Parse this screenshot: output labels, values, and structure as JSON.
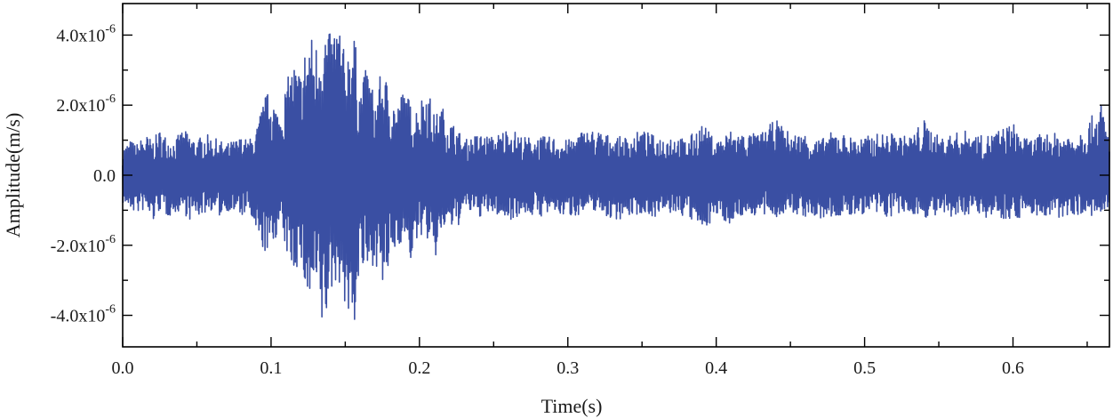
{
  "chart_data": {
    "type": "line",
    "title": "",
    "xlabel": "Time(s)",
    "ylabel": "Amplitude(m/s)",
    "xlim": [
      0.0,
      0.665
    ],
    "ylim": [
      -4.9e-06,
      4.9e-06
    ],
    "x_ticks": [
      0.0,
      0.1,
      0.2,
      0.3,
      0.4,
      0.5,
      0.6
    ],
    "x_tick_labels": [
      "0.0",
      "0.1",
      "0.2",
      "0.3",
      "0.4",
      "0.5",
      "0.6"
    ],
    "y_ticks": [
      -4e-06,
      -2e-06,
      0.0,
      2e-06,
      4e-06
    ],
    "y_tick_labels": [
      {
        "mantissa": "-4.0x10",
        "exp": "-6"
      },
      {
        "mantissa": "-2.0x10",
        "exp": "-6"
      },
      {
        "mantissa": "0.0",
        "exp": ""
      },
      {
        "mantissa": "2.0x10",
        "exp": "-6"
      },
      {
        "mantissa": "4.0x10",
        "exp": "-6"
      }
    ],
    "grid": false,
    "series": [
      {
        "color": "#3a4fa3",
        "x": [
          0.0,
          0.005,
          0.01,
          0.015,
          0.02,
          0.025,
          0.03,
          0.035,
          0.04,
          0.045,
          0.05,
          0.055,
          0.06,
          0.065,
          0.07,
          0.075,
          0.08,
          0.085,
          0.09,
          0.095,
          0.1,
          0.105,
          0.11,
          0.115,
          0.12,
          0.125,
          0.13,
          0.135,
          0.14,
          0.145,
          0.15,
          0.155,
          0.16,
          0.165,
          0.17,
          0.175,
          0.18,
          0.185,
          0.19,
          0.195,
          0.2,
          0.205,
          0.21,
          0.215,
          0.22,
          0.225,
          0.23,
          0.235,
          0.24,
          0.25,
          0.26,
          0.27,
          0.28,
          0.29,
          0.3,
          0.31,
          0.32,
          0.33,
          0.34,
          0.35,
          0.36,
          0.37,
          0.38,
          0.39,
          0.4,
          0.41,
          0.42,
          0.43,
          0.44,
          0.45,
          0.46,
          0.47,
          0.48,
          0.49,
          0.5,
          0.51,
          0.52,
          0.53,
          0.54,
          0.55,
          0.56,
          0.57,
          0.58,
          0.59,
          0.6,
          0.61,
          0.62,
          0.63,
          0.64,
          0.65,
          0.66,
          0.665
        ],
        "upper": [
          8e-07,
          1e-06,
          9e-07,
          1.2e-06,
          1e-06,
          1.3e-06,
          1.1e-06,
          1e-06,
          1.3e-06,
          1.2e-06,
          1e-06,
          1.2e-06,
          1.1e-06,
          1e-06,
          9e-07,
          1e-06,
          1.1e-06,
          1e-06,
          1.3e-06,
          2.2e-06,
          2.5e-06,
          1.8e-06,
          2.6e-06,
          3.3e-06,
          3e-06,
          4.2e-06,
          3.8e-06,
          4.6e-06,
          4e-06,
          4.8e-06,
          3.3e-06,
          4.5e-06,
          2.5e-06,
          3.2e-06,
          2.2e-06,
          3.1e-06,
          2.5e-06,
          2e-06,
          2.6e-06,
          1.9e-06,
          2.1e-06,
          2.7e-06,
          1.7e-06,
          2e-06,
          1.6e-06,
          1.4e-06,
          1e-06,
          1.1e-06,
          1.2e-06,
          1.1e-06,
          1.4e-06,
          1.1e-06,
          1.1e-06,
          1.1e-06,
          1e-06,
          1.3e-06,
          1.3e-06,
          1.1e-06,
          1.1e-06,
          1.3e-06,
          1.1e-06,
          1.2e-06,
          1e-06,
          1.5e-06,
          1e-06,
          1.3e-06,
          1.2e-06,
          1.2e-06,
          1.6e-06,
          1.2e-06,
          1.2e-06,
          1e-06,
          1.3e-06,
          1.1e-06,
          1.1e-06,
          1.2e-06,
          1.2e-06,
          1.1e-06,
          1.6e-06,
          1.1e-06,
          1.2e-06,
          1.3e-06,
          1.1e-06,
          1.3e-06,
          1.5e-06,
          1e-06,
          1.2e-06,
          1.2e-06,
          1.2e-06,
          1.5e-06,
          2.1e-06,
          1e-06
        ],
        "lower": [
          -8e-07,
          -1e-06,
          -1.1e-06,
          -1e-06,
          -1.4e-06,
          -1e-06,
          -1.2e-06,
          -1.1e-06,
          -1e-06,
          -1.3e-06,
          -1.2e-06,
          -1.1e-06,
          -1e-06,
          -1.2e-06,
          -1e-06,
          -1.1e-06,
          -1.2e-06,
          -1e-06,
          -1.9e-06,
          -2.2e-06,
          -2.3e-06,
          -1.5e-06,
          -2.2e-06,
          -2.8e-06,
          -2.5e-06,
          -3.9e-06,
          -3.4e-06,
          -4.7e-06,
          -3.5e-06,
          -2.9e-06,
          -3.8e-06,
          -4.8e-06,
          -2.7e-06,
          -3e-06,
          -2.4e-06,
          -3.4e-06,
          -2.7e-06,
          -2e-06,
          -1.9e-06,
          -2.6e-06,
          -1.7e-06,
          -1.8e-06,
          -2.6e-06,
          -1.6e-06,
          -1.5e-06,
          -1.6e-06,
          -1e-06,
          -1.1e-06,
          -1.2e-06,
          -1.1e-06,
          -1.3e-06,
          -1.1e-06,
          -1.2e-06,
          -1.1e-06,
          -1.2e-06,
          -1.1e-06,
          -1e-06,
          -1.3e-06,
          -1.2e-06,
          -1.1e-06,
          -1.2e-06,
          -1.1e-06,
          -1.2e-06,
          -1.6e-06,
          -1.2e-06,
          -1.4e-06,
          -1.1e-06,
          -1.2e-06,
          -1.2e-06,
          -1.1e-06,
          -1.2e-06,
          -1.3e-06,
          -1.2e-06,
          -1.2e-06,
          -1.1e-06,
          -1.2e-06,
          -1.2e-06,
          -1.1e-06,
          -1.2e-06,
          -1.2e-06,
          -1.3e-06,
          -1.1e-06,
          -1.2e-06,
          -1.2e-06,
          -1.3e-06,
          -1.1e-06,
          -1.2e-06,
          -1.3e-06,
          -1.1e-06,
          -1.2e-06,
          -1.2e-06,
          -1.1e-06
        ]
      }
    ]
  }
}
